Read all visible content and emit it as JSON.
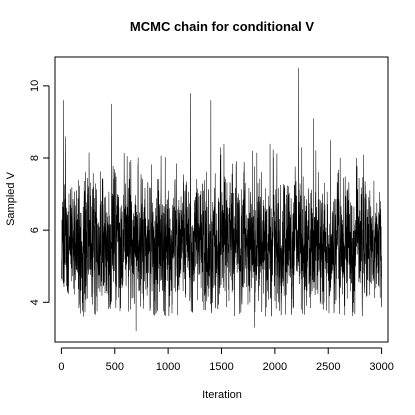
{
  "chart_data": {
    "type": "line",
    "title": "MCMC chain for conditional V",
    "xlabel": "Iteration",
    "ylabel": "Sampled V",
    "xlim": [
      -60,
      3060
    ],
    "ylim": [
      2.9,
      10.8
    ],
    "x_ticks": [
      0,
      500,
      1000,
      1500,
      2000,
      2500,
      3000
    ],
    "y_ticks": [
      4,
      6,
      8,
      10
    ],
    "grid": false,
    "legend": "none",
    "line_color": "#000000",
    "series": [
      {
        "x_start": 1,
        "x_end": 3000,
        "summary": {
          "center": 5.6,
          "sd": 0.95,
          "min": 3.1,
          "max": 10.5,
          "n": 3000
        },
        "notable_points": [
          {
            "x": 20,
            "y": 9.6
          },
          {
            "x": 470,
            "y": 9.5
          },
          {
            "x": 700,
            "y": 3.2
          },
          {
            "x": 1210,
            "y": 9.8
          },
          {
            "x": 1400,
            "y": 9.6
          },
          {
            "x": 1810,
            "y": 3.3
          },
          {
            "x": 2220,
            "y": 10.5
          },
          {
            "x": 2360,
            "y": 9.1
          }
        ]
      }
    ]
  }
}
